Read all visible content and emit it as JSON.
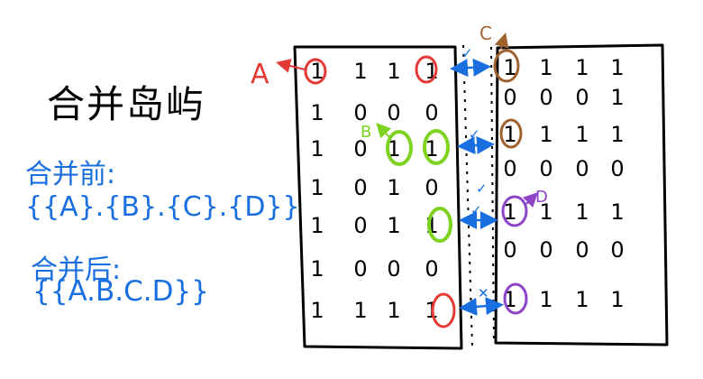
{
  "title": "合并岛屿",
  "before": {
    "label": "合并前:",
    "set": "{{A}.{B}.{C}.{D}}"
  },
  "after": {
    "label": "合并后:",
    "set": "{{A.B.C.D}}"
  },
  "markers": {
    "A": {
      "text": "A",
      "color": "#e53935"
    },
    "B": {
      "text": "B",
      "color": "#7ed321"
    },
    "C": {
      "text": "C",
      "color": "#a0622d"
    },
    "D": {
      "text": "D",
      "color": "#8e44c9"
    }
  },
  "boundary_marks": [
    "✓",
    "✓",
    "✓",
    "✓",
    "✕"
  ],
  "left_grid": [
    [
      "1",
      "1",
      "1",
      "1"
    ],
    [
      "1",
      "0",
      "0",
      "0"
    ],
    [
      "1",
      "0",
      "1",
      "1"
    ],
    [
      "1",
      "0",
      "1",
      "0"
    ],
    [
      "1",
      "0",
      "1",
      "1"
    ],
    [
      "1",
      "0",
      "0",
      "0"
    ],
    [
      "1",
      "1",
      "1",
      "1"
    ]
  ],
  "right_grid": [
    [
      "1",
      "1",
      "1",
      "1"
    ],
    [
      "0",
      "0",
      "0",
      "1"
    ],
    [
      "1",
      "1",
      "1",
      "1"
    ],
    [
      "0",
      "0",
      "0",
      "0"
    ],
    [
      "1",
      "1",
      "1",
      "1"
    ],
    [
      "0",
      "0",
      "0",
      "0"
    ],
    [
      "1",
      "1",
      "1",
      "1"
    ]
  ],
  "colors": {
    "ink": "#000000",
    "blue": "#1a6fe0"
  }
}
